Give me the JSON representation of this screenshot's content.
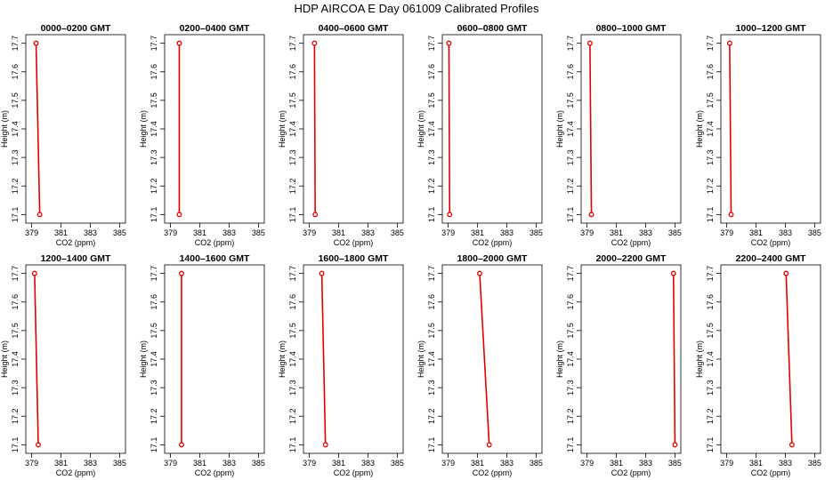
{
  "page": {
    "title": "HDP  AIRCOA E  Day 061009  Calibrated Profiles"
  },
  "colors": {
    "profile": "#e00000",
    "axis": "#000000"
  },
  "chart_data": [
    {
      "type": "line",
      "title": "0000–0200 GMT",
      "xlabel": "CO2 (ppm)",
      "ylabel": "Height (m)",
      "xlim": [
        378.6,
        385.4
      ],
      "ylim": [
        17.07,
        17.73
      ],
      "xticks": [
        379,
        381,
        383,
        385
      ],
      "yticks": [
        17.1,
        17.2,
        17.3,
        17.4,
        17.5,
        17.6,
        17.7
      ],
      "series": [
        {
          "x": [
            379.3,
            379.55
          ],
          "y": [
            17.7,
            17.1
          ]
        }
      ]
    },
    {
      "type": "line",
      "title": "0200–0400 GMT",
      "xlabel": "CO2 (ppm)",
      "ylabel": "Height (m)",
      "xlim": [
        378.6,
        385.4
      ],
      "ylim": [
        17.07,
        17.73
      ],
      "xticks": [
        379,
        381,
        383,
        385
      ],
      "yticks": [
        17.1,
        17.2,
        17.3,
        17.4,
        17.5,
        17.6,
        17.7
      ],
      "series": [
        {
          "x": [
            379.6,
            379.6
          ],
          "y": [
            17.7,
            17.1
          ]
        }
      ]
    },
    {
      "type": "line",
      "title": "0400–0600 GMT",
      "xlabel": "CO2 (ppm)",
      "ylabel": "Height (m)",
      "xlim": [
        378.6,
        385.4
      ],
      "ylim": [
        17.07,
        17.73
      ],
      "xticks": [
        379,
        381,
        383,
        385
      ],
      "yticks": [
        17.1,
        17.2,
        17.3,
        17.4,
        17.5,
        17.6,
        17.7
      ],
      "series": [
        {
          "x": [
            379.35,
            379.4
          ],
          "y": [
            17.7,
            17.1
          ]
        }
      ]
    },
    {
      "type": "line",
      "title": "0600–0800 GMT",
      "xlabel": "CO2 (ppm)",
      "ylabel": "Height (m)",
      "xlim": [
        378.6,
        385.4
      ],
      "ylim": [
        17.07,
        17.73
      ],
      "xticks": [
        379,
        381,
        383,
        385
      ],
      "yticks": [
        17.1,
        17.2,
        17.3,
        17.4,
        17.5,
        17.6,
        17.7
      ],
      "series": [
        {
          "x": [
            379.05,
            379.1
          ],
          "y": [
            17.7,
            17.1
          ]
        }
      ]
    },
    {
      "type": "line",
      "title": "0800–1000 GMT",
      "xlabel": "CO2 (ppm)",
      "ylabel": "Height (m)",
      "xlim": [
        378.6,
        385.4
      ],
      "ylim": [
        17.07,
        17.73
      ],
      "xticks": [
        379,
        381,
        383,
        385
      ],
      "yticks": [
        17.1,
        17.2,
        17.3,
        17.4,
        17.5,
        17.6,
        17.7
      ],
      "series": [
        {
          "x": [
            379.2,
            379.3
          ],
          "y": [
            17.7,
            17.1
          ]
        }
      ]
    },
    {
      "type": "line",
      "title": "1000–1200 GMT",
      "xlabel": "CO2 (ppm)",
      "ylabel": "Height (m)",
      "xlim": [
        378.6,
        385.4
      ],
      "ylim": [
        17.07,
        17.73
      ],
      "xticks": [
        379,
        381,
        383,
        385
      ],
      "yticks": [
        17.1,
        17.2,
        17.3,
        17.4,
        17.5,
        17.6,
        17.7
      ],
      "series": [
        {
          "x": [
            379.2,
            379.3
          ],
          "y": [
            17.7,
            17.1
          ]
        }
      ]
    },
    {
      "type": "line",
      "title": "1200–1400 GMT",
      "xlabel": "CO2 (ppm)",
      "ylabel": "Height (m)",
      "xlim": [
        378.6,
        385.4
      ],
      "ylim": [
        17.07,
        17.73
      ],
      "xticks": [
        379,
        381,
        383,
        385
      ],
      "yticks": [
        17.1,
        17.2,
        17.3,
        17.4,
        17.5,
        17.6,
        17.7
      ],
      "series": [
        {
          "x": [
            379.2,
            379.45
          ],
          "y": [
            17.7,
            17.1
          ]
        }
      ]
    },
    {
      "type": "line",
      "title": "1400–1600 GMT",
      "xlabel": "CO2 (ppm)",
      "ylabel": "Height (m)",
      "xlim": [
        378.6,
        385.4
      ],
      "ylim": [
        17.07,
        17.73
      ],
      "xticks": [
        379,
        381,
        383,
        385
      ],
      "yticks": [
        17.1,
        17.2,
        17.3,
        17.4,
        17.5,
        17.6,
        17.7
      ],
      "series": [
        {
          "x": [
            379.75,
            379.75
          ],
          "y": [
            17.7,
            17.1
          ]
        }
      ]
    },
    {
      "type": "line",
      "title": "1600–1800 GMT",
      "xlabel": "CO2 (ppm)",
      "ylabel": "Height (m)",
      "xlim": [
        378.6,
        385.4
      ],
      "ylim": [
        17.07,
        17.73
      ],
      "xticks": [
        379,
        381,
        383,
        385
      ],
      "yticks": [
        17.1,
        17.2,
        17.3,
        17.4,
        17.5,
        17.6,
        17.7
      ],
      "series": [
        {
          "x": [
            379.85,
            380.1
          ],
          "y": [
            17.7,
            17.1
          ]
        }
      ]
    },
    {
      "type": "line",
      "title": "1800–2000 GMT",
      "xlabel": "CO2 (ppm)",
      "ylabel": "Height (m)",
      "xlim": [
        378.6,
        385.4
      ],
      "ylim": [
        17.07,
        17.73
      ],
      "xticks": [
        379,
        381,
        383,
        385
      ],
      "yticks": [
        17.1,
        17.2,
        17.3,
        17.4,
        17.5,
        17.6,
        17.7
      ],
      "series": [
        {
          "x": [
            381.15,
            381.8
          ],
          "y": [
            17.7,
            17.1
          ]
        }
      ]
    },
    {
      "type": "line",
      "title": "2000–2200 GMT",
      "xlabel": "CO2 (ppm)",
      "ylabel": "Height (m)",
      "xlim": [
        378.6,
        385.4
      ],
      "ylim": [
        17.07,
        17.73
      ],
      "xticks": [
        379,
        381,
        383,
        385
      ],
      "yticks": [
        17.1,
        17.2,
        17.3,
        17.4,
        17.5,
        17.6,
        17.7
      ],
      "series": [
        {
          "x": [
            384.9,
            385.0
          ],
          "y": [
            17.7,
            17.1
          ]
        }
      ]
    },
    {
      "type": "line",
      "title": "2200–2400 GMT",
      "xlabel": "CO2 (ppm)",
      "ylabel": "Height (m)",
      "xlim": [
        378.6,
        385.4
      ],
      "ylim": [
        17.07,
        17.73
      ],
      "xticks": [
        379,
        381,
        383,
        385
      ],
      "yticks": [
        17.1,
        17.2,
        17.3,
        17.4,
        17.5,
        17.6,
        17.7
      ],
      "series": [
        {
          "x": [
            383.05,
            383.45
          ],
          "y": [
            17.7,
            17.1
          ]
        }
      ]
    }
  ]
}
